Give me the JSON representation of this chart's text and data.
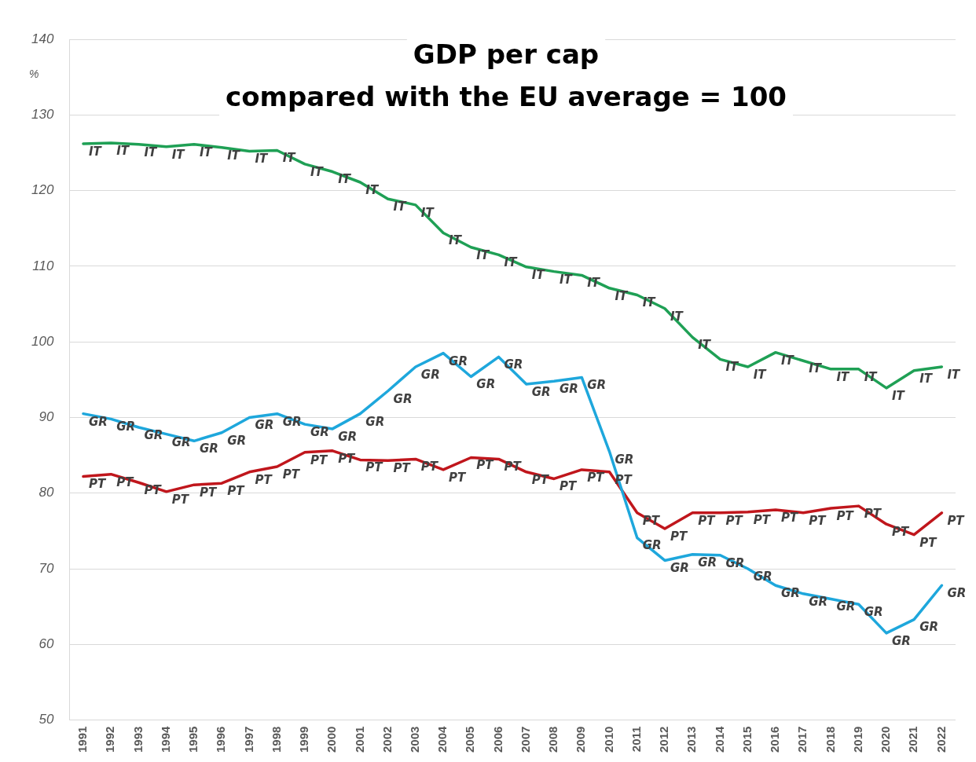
{
  "chart_data": {
    "type": "line",
    "title": "GDP per cap",
    "subtitle": "compared with the EU average = 100",
    "ylabel": "%",
    "categories": [
      "1991",
      "1992",
      "1993",
      "1994",
      "1995",
      "1996",
      "1997",
      "1998",
      "1999",
      "2000",
      "2001",
      "2002",
      "2003",
      "2004",
      "2005",
      "2006",
      "2007",
      "2008",
      "2009",
      "2010",
      "2011",
      "2012",
      "2013",
      "2014",
      "2015",
      "2016",
      "2017",
      "2018",
      "2019",
      "2020",
      "2021",
      "2022"
    ],
    "series": [
      {
        "name": "IT",
        "color": "#1fa055",
        "values": [
          126.2,
          126.3,
          126.1,
          125.8,
          126.1,
          125.7,
          125.2,
          125.3,
          123.5,
          122.5,
          121.1,
          118.9,
          118.1,
          114.4,
          112.5,
          111.5,
          109.9,
          109.3,
          108.8,
          107.1,
          106.2,
          104.4,
          100.6,
          97.7,
          96.7,
          98.6,
          97.5,
          96.4,
          96.4,
          93.9,
          96.2,
          96.7
        ]
      },
      {
        "name": "GR",
        "color": "#1ea7dc",
        "values": [
          90.5,
          89.8,
          88.7,
          87.8,
          86.9,
          88.0,
          90.0,
          90.5,
          89.1,
          88.5,
          90.5,
          93.5,
          96.7,
          98.5,
          95.4,
          98.0,
          94.4,
          94.8,
          95.3,
          85.5,
          74.1,
          71.1,
          71.9,
          71.8,
          70.0,
          67.8,
          66.7,
          66.0,
          65.3,
          61.5,
          63.3,
          67.8
        ]
      },
      {
        "name": "PT",
        "color": "#c0161c",
        "values": [
          82.2,
          82.5,
          81.4,
          80.2,
          81.1,
          81.3,
          82.8,
          83.5,
          85.4,
          85.6,
          84.4,
          84.3,
          84.5,
          83.1,
          84.7,
          84.5,
          82.8,
          81.9,
          83.1,
          82.8,
          77.4,
          75.3,
          77.4,
          77.4,
          77.5,
          77.8,
          77.4,
          78.0,
          78.3,
          75.9,
          74.5,
          77.4
        ]
      }
    ],
    "ylim": [
      50,
      140
    ],
    "yticks": [
      50,
      60,
      70,
      80,
      90,
      100,
      110,
      120,
      130,
      140
    ],
    "grid": "y",
    "legend": false,
    "marker": "none",
    "line_style": "solid"
  }
}
